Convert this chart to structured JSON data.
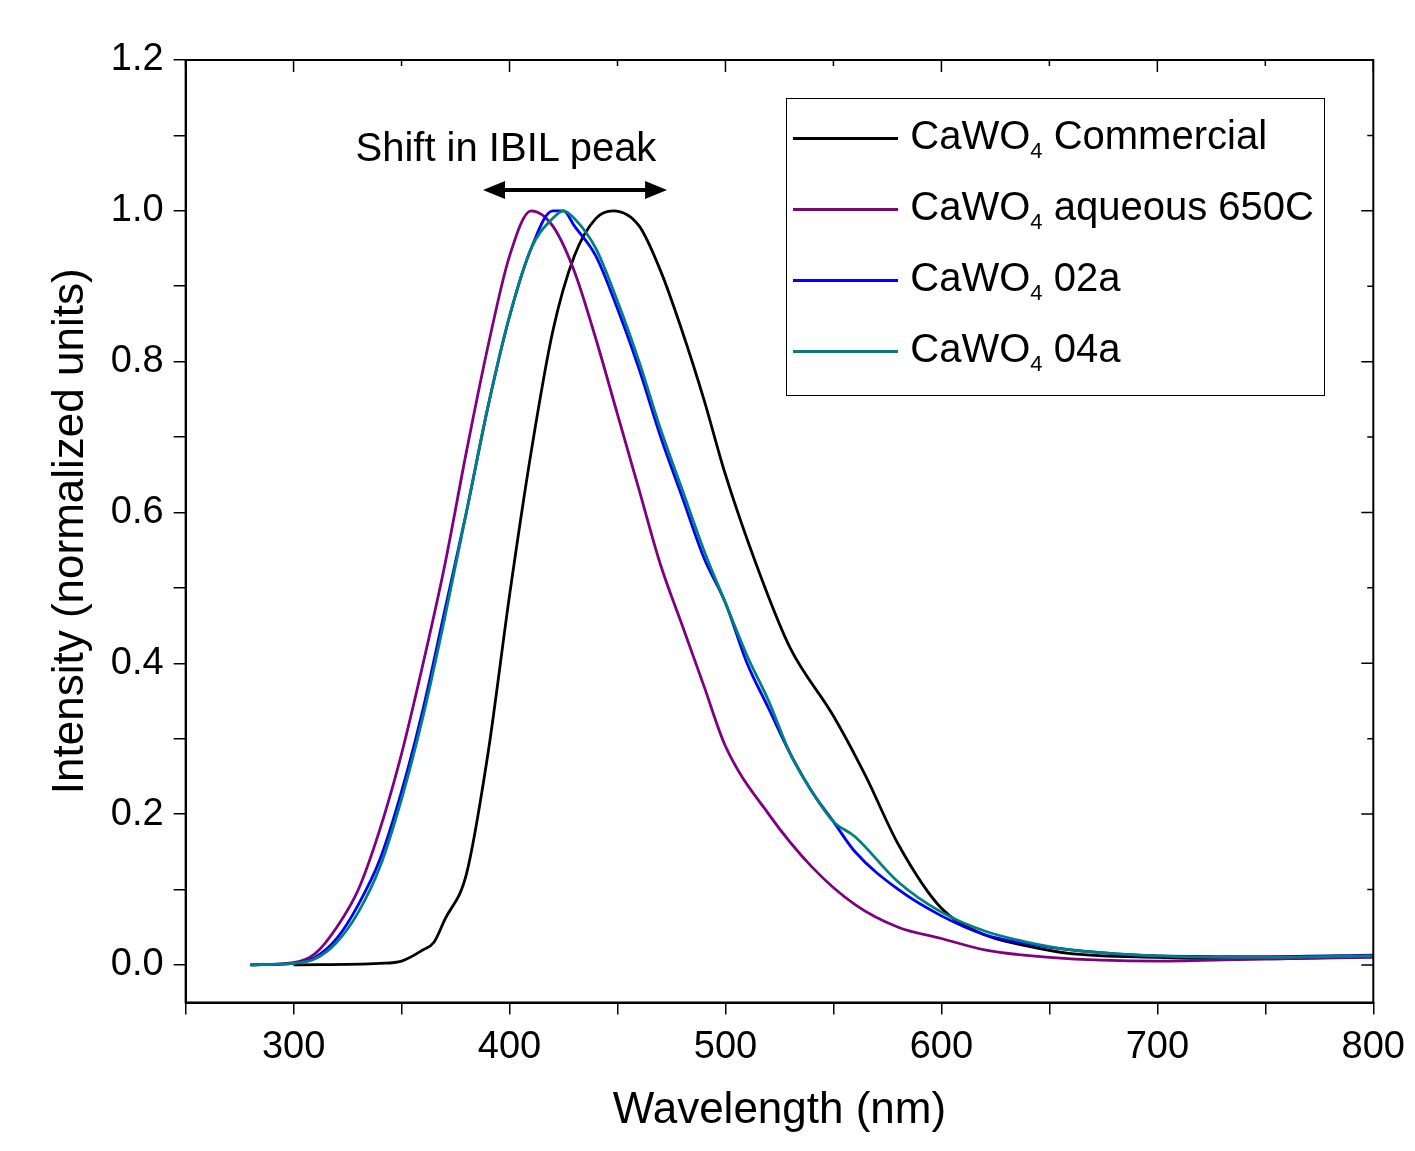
{
  "chart_data": {
    "type": "line",
    "xlabel": "Wavelength (nm)",
    "ylabel": "Intensity (normalized units)",
    "annotations": [
      "Shift in IBIL peak"
    ],
    "xlim": [
      250,
      800
    ],
    "xticks": [
      {
        "value": 250,
        "label": null
      },
      300,
      {
        "value": 350,
        "label": null
      },
      400,
      {
        "value": 450,
        "label": null
      },
      500,
      {
        "value": 550,
        "label": null
      },
      600,
      {
        "value": 650,
        "label": null
      },
      700,
      {
        "value": 750,
        "label": null
      },
      800
    ],
    "ylim": [
      -0.05,
      1.2
    ],
    "yticks": [
      {
        "value": 0,
        "label": "0.0"
      },
      {
        "value": 0.1,
        "label": null
      },
      {
        "value": 0.2,
        "label": "0.2"
      },
      {
        "value": 0.3,
        "label": null
      },
      {
        "value": 0.4,
        "label": "0.4"
      },
      {
        "value": 0.5,
        "label": null
      },
      {
        "value": 0.6,
        "label": "0.6"
      },
      {
        "value": 0.7,
        "label": null
      },
      {
        "value": 0.8,
        "label": "0.8"
      },
      {
        "value": 0.9,
        "label": null
      },
      {
        "value": 1,
        "label": "1.0"
      },
      {
        "value": 1.1,
        "label": null
      },
      {
        "value": 1.2,
        "label": "1.2"
      }
    ],
    "grid": false,
    "legend": "top right",
    "marker": "none",
    "line_style": "solid",
    "series": [
      {
        "name": "CaWO$_{4}$ Commercial",
        "color": "#000000",
        "x": [
          300,
          340,
          350,
          360,
          365,
          370,
          380,
          390,
          400,
          410,
          420,
          430,
          440,
          448,
          460,
          470,
          480,
          490,
          500,
          517,
          530,
          550,
          565,
          580,
          600,
          620,
          640,
          660,
          700,
          750,
          800
        ],
        "values": [
          0,
          0.002,
          0.005,
          0.02,
          0.03,
          0.06,
          0.12,
          0.28,
          0.49,
          0.68,
          0.84,
          0.94,
          0.99,
          1.0,
          0.98,
          0.92,
          0.84,
          0.75,
          0.65,
          0.51,
          0.42,
          0.33,
          0.25,
          0.16,
          0.075,
          0.04,
          0.025,
          0.015,
          0.01,
          0.008,
          0.012
        ]
      },
      {
        "name": "CaWO$_{4}$ aqueous 650C",
        "color": "#800080",
        "x": [
          280,
          300,
          310,
          320,
          330,
          340,
          350,
          360,
          370,
          380,
          390,
          400,
          410,
          420,
          430,
          440,
          450,
          460,
          470,
          480,
          490,
          500,
          520,
          540,
          560,
          580,
          600,
          620,
          650,
          700,
          750,
          800
        ],
        "values": [
          0,
          0.003,
          0.015,
          0.05,
          0.1,
          0.18,
          0.28,
          0.4,
          0.53,
          0.68,
          0.82,
          0.94,
          1.0,
          0.98,
          0.92,
          0.83,
          0.73,
          0.63,
          0.53,
          0.45,
          0.37,
          0.29,
          0.2,
          0.13,
          0.08,
          0.05,
          0.035,
          0.02,
          0.01,
          0.005,
          0.008,
          0.01
        ]
      },
      {
        "name": "CaWO$_{4}$ 02a",
        "color": "#0000ff",
        "x": [
          280,
          300,
          310,
          320,
          330,
          340,
          350,
          360,
          370,
          380,
          390,
          400,
          410,
          420,
          425,
          430,
          440,
          450,
          460,
          470,
          480,
          490,
          500,
          510,
          520,
          530,
          540,
          550,
          560,
          580,
          600,
          620,
          640,
          660,
          700,
          750,
          800
        ],
        "values": [
          0,
          0.002,
          0.01,
          0.035,
          0.08,
          0.14,
          0.23,
          0.34,
          0.47,
          0.6,
          0.74,
          0.86,
          0.95,
          1.0,
          1.0,
          0.98,
          0.94,
          0.87,
          0.79,
          0.7,
          0.62,
          0.54,
          0.48,
          0.4,
          0.34,
          0.28,
          0.23,
          0.19,
          0.15,
          0.1,
          0.065,
          0.04,
          0.028,
          0.02,
          0.012,
          0.011,
          0.013
        ]
      },
      {
        "name": "CaWO$_{4}$ 04a",
        "color": "#008080",
        "x": [
          280,
          300,
          310,
          320,
          330,
          340,
          350,
          360,
          370,
          380,
          390,
          400,
          410,
          420,
          425,
          430,
          440,
          450,
          460,
          470,
          480,
          490,
          500,
          510,
          520,
          530,
          540,
          550,
          560,
          580,
          600,
          620,
          640,
          660,
          700,
          750,
          800
        ],
        "values": [
          0,
          0.002,
          0.008,
          0.03,
          0.07,
          0.13,
          0.22,
          0.33,
          0.46,
          0.6,
          0.74,
          0.86,
          0.95,
          0.99,
          1.0,
          0.99,
          0.95,
          0.88,
          0.8,
          0.71,
          0.63,
          0.55,
          0.48,
          0.41,
          0.35,
          0.28,
          0.23,
          0.19,
          0.17,
          0.11,
          0.07,
          0.045,
          0.03,
          0.02,
          0.012,
          0.01,
          0.012
        ]
      }
    ]
  }
}
